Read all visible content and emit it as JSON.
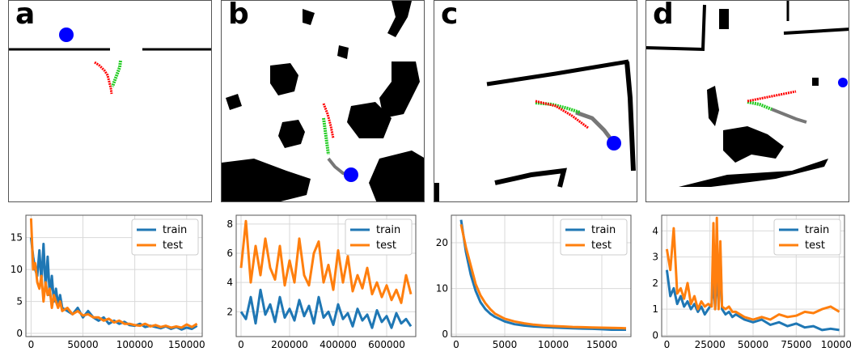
{
  "panels": [
    {
      "letter": "a"
    },
    {
      "letter": "b"
    },
    {
      "letter": "c"
    },
    {
      "letter": "d"
    }
  ],
  "colors": {
    "train": "#1f77b4",
    "test": "#ff7f0e",
    "goal": "#0000ff",
    "path_red": "#ff0000",
    "path_green": "#22cc22",
    "path_gray": "#777777",
    "obstacle": "#000000",
    "grid": "#d9d9d9",
    "frame": "#555555"
  },
  "chart_data": [
    {
      "type": "line",
      "panel": "a",
      "xlim": [
        -5000,
        165000
      ],
      "ylim": [
        -0.5,
        18.5
      ],
      "xticks": [
        0,
        50000,
        100000,
        150000
      ],
      "yticks": [
        0,
        5,
        10,
        15
      ],
      "legend": "top-right",
      "grid": true,
      "series": [
        {
          "name": "train",
          "x": [
            0,
            2000,
            4000,
            6000,
            8000,
            10000,
            12000,
            14000,
            16000,
            18000,
            20000,
            22000,
            24000,
            26000,
            28000,
            30000,
            35000,
            40000,
            45000,
            50000,
            55000,
            60000,
            65000,
            70000,
            75000,
            80000,
            85000,
            90000,
            95000,
            100000,
            105000,
            110000,
            115000,
            120000,
            125000,
            130000,
            135000,
            140000,
            145000,
            150000,
            155000,
            160000
          ],
          "y": [
            15,
            12,
            10,
            9,
            13,
            8,
            14,
            7,
            12,
            6,
            9,
            5,
            7,
            4.5,
            6,
            4,
            3.5,
            3,
            4,
            2.5,
            3.5,
            2.5,
            2,
            2.5,
            1.5,
            2,
            1.5,
            1.8,
            1.3,
            1.2,
            1.5,
            1,
            1.2,
            1,
            0.8,
            1.1,
            0.7,
            1,
            0.6,
            0.9,
            0.7,
            1.2
          ]
        },
        {
          "name": "test",
          "x": [
            0,
            2000,
            4000,
            6000,
            8000,
            10000,
            12000,
            14000,
            16000,
            18000,
            20000,
            22000,
            24000,
            26000,
            28000,
            30000,
            35000,
            40000,
            45000,
            50000,
            55000,
            60000,
            65000,
            70000,
            75000,
            80000,
            85000,
            90000,
            95000,
            100000,
            105000,
            110000,
            115000,
            120000,
            125000,
            130000,
            135000,
            140000,
            145000,
            150000,
            155000,
            160000
          ],
          "y": [
            18,
            10,
            11,
            8,
            7,
            9,
            5,
            8,
            6,
            7,
            4,
            6,
            5,
            4,
            5,
            3.5,
            4,
            3,
            3.5,
            2.8,
            3,
            2.5,
            2.5,
            2,
            2.3,
            1.7,
            2,
            1.5,
            1.5,
            1.3,
            1.2,
            1.5,
            1.1,
            1.3,
            1,
            1.2,
            0.9,
            1.1,
            0.9,
            1.4,
            1,
            1.5
          ]
        }
      ]
    },
    {
      "type": "line",
      "panel": "b",
      "xlim": [
        -20000,
        720000
      ],
      "ylim": [
        0.3,
        8.6
      ],
      "xticks": [
        0,
        200000,
        400000,
        600000
      ],
      "yticks": [
        2,
        4,
        6,
        8
      ],
      "legend": "top-right",
      "grid": true,
      "series": [
        {
          "name": "train",
          "x": [
            0,
            20000,
            40000,
            60000,
            80000,
            100000,
            120000,
            140000,
            160000,
            180000,
            200000,
            220000,
            240000,
            260000,
            280000,
            300000,
            320000,
            340000,
            360000,
            380000,
            400000,
            420000,
            440000,
            460000,
            480000,
            500000,
            520000,
            540000,
            560000,
            580000,
            600000,
            620000,
            640000,
            660000,
            680000,
            700000
          ],
          "y": [
            2,
            1.5,
            3,
            1.2,
            3.5,
            1.8,
            2.5,
            1.3,
            3,
            1.6,
            2.2,
            1.4,
            2.8,
            1.7,
            2.4,
            1.2,
            3,
            1.6,
            2,
            1.1,
            2.5,
            1.5,
            1.9,
            1,
            2.2,
            1.4,
            1.8,
            0.9,
            2.1,
            1.3,
            1.7,
            0.9,
            1.9,
            1.2,
            1.5,
            1
          ]
        },
        {
          "name": "test",
          "x": [
            0,
            20000,
            40000,
            60000,
            80000,
            100000,
            120000,
            140000,
            160000,
            180000,
            200000,
            220000,
            240000,
            260000,
            280000,
            300000,
            320000,
            340000,
            360000,
            380000,
            400000,
            420000,
            440000,
            460000,
            480000,
            500000,
            520000,
            540000,
            560000,
            580000,
            600000,
            620000,
            640000,
            660000,
            680000,
            700000
          ],
          "y": [
            5,
            8.2,
            4,
            6.5,
            4.5,
            7,
            5,
            4.2,
            6.5,
            3.8,
            5.5,
            4,
            7,
            4.5,
            3.8,
            6,
            6.8,
            4,
            5.2,
            3.5,
            6.2,
            4,
            5.8,
            3.4,
            4.5,
            3.6,
            5,
            3.2,
            4,
            3,
            3.8,
            2.8,
            3.5,
            2.6,
            4.5,
            3.2
          ]
        }
      ]
    },
    {
      "type": "line",
      "panel": "c",
      "xlim": [
        -500,
        18000
      ],
      "ylim": [
        -0.5,
        26
      ],
      "xticks": [
        0,
        5000,
        10000,
        15000
      ],
      "yticks": [
        0,
        10,
        20
      ],
      "legend": "top-right",
      "grid": true,
      "series": [
        {
          "name": "train",
          "x": [
            500,
            1000,
            1500,
            2000,
            2500,
            3000,
            3500,
            4000,
            5000,
            6000,
            7000,
            8000,
            9000,
            10000,
            11000,
            12000,
            13000,
            14000,
            15000,
            16000,
            17000,
            17500
          ],
          "y": [
            25,
            18,
            13,
            9.5,
            7,
            5.5,
            4.5,
            3.8,
            2.8,
            2.2,
            1.9,
            1.7,
            1.6,
            1.5,
            1.4,
            1.3,
            1.25,
            1.2,
            1.1,
            1.0,
            1.0,
            1.0
          ]
        },
        {
          "name": "test",
          "x": [
            500,
            1000,
            1500,
            2000,
            2500,
            3000,
            3500,
            4000,
            5000,
            6000,
            7000,
            8000,
            9000,
            10000,
            11000,
            12000,
            13000,
            14000,
            15000,
            16000,
            17000,
            17500
          ],
          "y": [
            24,
            19,
            15,
            11,
            8.5,
            6.8,
            5.5,
            4.5,
            3.4,
            2.8,
            2.4,
            2.1,
            1.9,
            1.8,
            1.7,
            1.6,
            1.55,
            1.5,
            1.45,
            1.4,
            1.35,
            1.3
          ]
        }
      ]
    },
    {
      "type": "line",
      "panel": "d",
      "xlim": [
        -3000,
        103000
      ],
      "ylim": [
        -0.05,
        4.6
      ],
      "xticks": [
        0,
        25000,
        50000,
        75000,
        100000
      ],
      "yticks": [
        0,
        1,
        2,
        3,
        4
      ],
      "legend": "top-right",
      "grid": true,
      "series": [
        {
          "name": "train",
          "x": [
            0,
            2000,
            4000,
            6000,
            8000,
            10000,
            12000,
            14000,
            16000,
            18000,
            20000,
            22000,
            24000,
            26000,
            27000,
            28000,
            29000,
            30000,
            31000,
            32000,
            34000,
            36000,
            38000,
            40000,
            45000,
            50000,
            55000,
            60000,
            65000,
            70000,
            75000,
            80000,
            85000,
            90000,
            95000,
            100000
          ],
          "y": [
            2.5,
            1.5,
            1.8,
            1.2,
            1.5,
            1.1,
            1.3,
            1.0,
            1.2,
            0.9,
            1.1,
            0.8,
            1.0,
            1.2,
            2.2,
            1.0,
            2.6,
            1.1,
            3.2,
            1.0,
            0.8,
            0.9,
            0.7,
            0.8,
            0.6,
            0.5,
            0.6,
            0.4,
            0.5,
            0.35,
            0.45,
            0.3,
            0.35,
            0.2,
            0.25,
            0.2
          ]
        },
        {
          "name": "test",
          "x": [
            0,
            2000,
            4000,
            6000,
            8000,
            10000,
            12000,
            14000,
            16000,
            18000,
            20000,
            22000,
            24000,
            26000,
            27000,
            28000,
            29000,
            30000,
            31000,
            32000,
            34000,
            36000,
            38000,
            40000,
            45000,
            50000,
            55000,
            60000,
            65000,
            70000,
            75000,
            80000,
            85000,
            90000,
            95000,
            100000
          ],
          "y": [
            3.3,
            2.5,
            4.1,
            1.6,
            1.8,
            1.4,
            2.0,
            1.2,
            1.5,
            1.0,
            1.3,
            1.1,
            1.2,
            1.1,
            4.3,
            1.0,
            4.5,
            1.0,
            3.6,
            1.1,
            1.0,
            1.1,
            0.9,
            0.9,
            0.7,
            0.6,
            0.7,
            0.6,
            0.8,
            0.7,
            0.75,
            0.9,
            0.85,
            1.0,
            1.1,
            0.9
          ]
        }
      ]
    }
  ]
}
